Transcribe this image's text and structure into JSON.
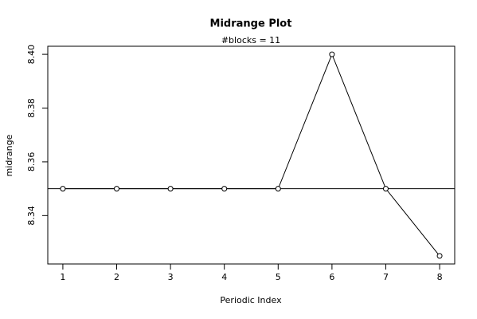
{
  "chart_data": {
    "type": "line",
    "title": "Midrange Plot",
    "subtitle": "#blocks =  11",
    "x_label": "Periodic Index",
    "y_label": "midrange",
    "x": [
      1,
      2,
      3,
      4,
      5,
      6,
      7,
      8
    ],
    "values": [
      8.35,
      8.35,
      8.35,
      8.35,
      8.35,
      8.4,
      8.35,
      8.325
    ],
    "color": "#000000",
    "hline": 8.35,
    "xlim": [
      0.72,
      8.28
    ],
    "ylim": [
      8.322,
      8.403
    ],
    "xticks": [
      1,
      2,
      3,
      4,
      5,
      6,
      7,
      8
    ],
    "yticks": [
      8.34,
      8.36,
      8.38,
      {
        "value": 8.4,
        "label": "8.40"
      }
    ]
  }
}
